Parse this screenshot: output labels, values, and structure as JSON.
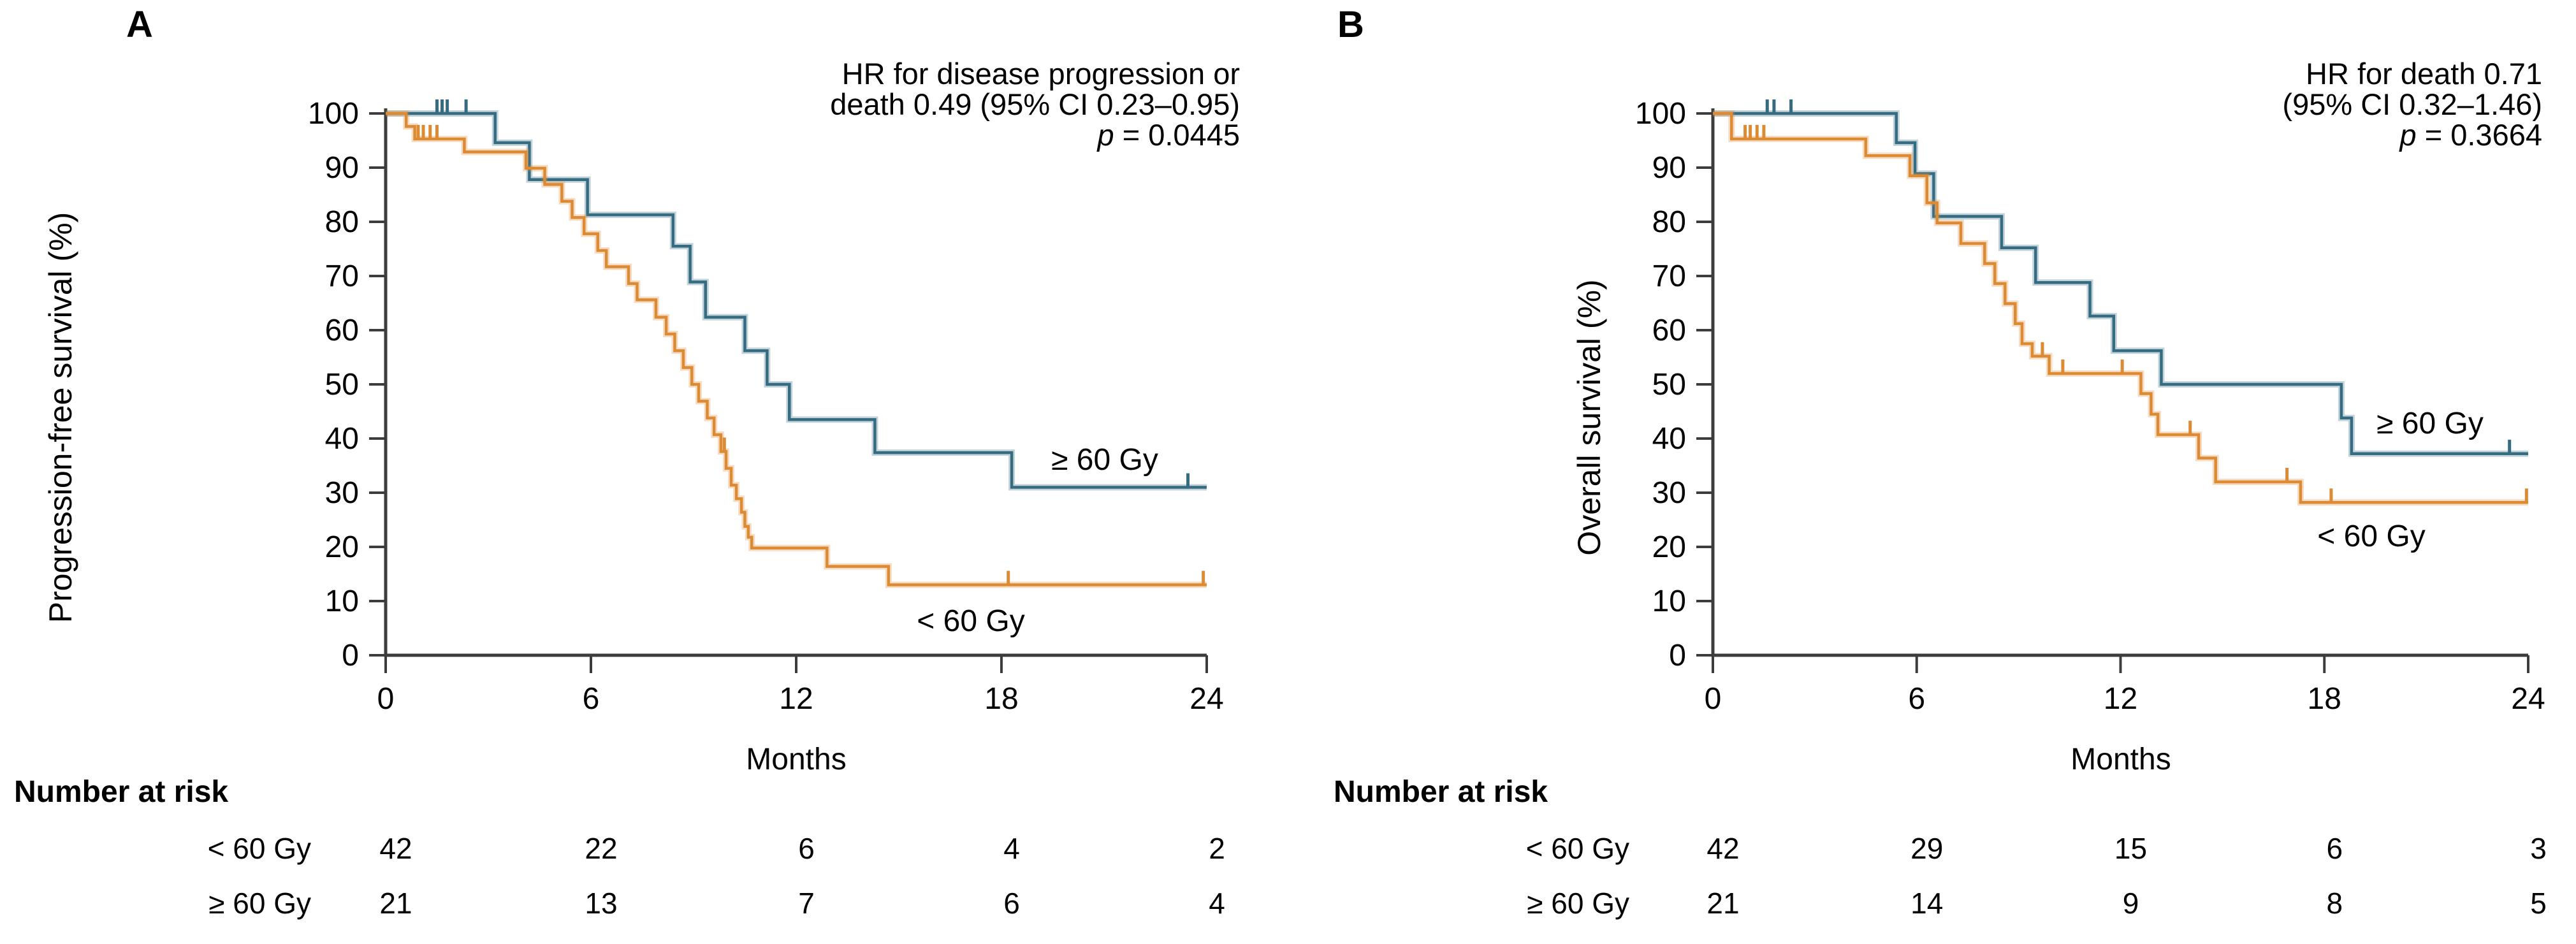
{
  "figure": {
    "colors": {
      "lt60": "#DD8A35",
      "ge60": "#356C82",
      "axis": "#3C3C3C",
      "text": "#000000"
    },
    "panels": [
      {
        "letter": "A",
        "ylabel": "Progression-free survival (%)",
        "xlabel": "Months",
        "annotation": {
          "line1": "HR for disease progression or",
          "line2": "death 0.49 (95% CI 0.23–0.95)",
          "p_symbol": "p",
          "p_value": " = 0.0445"
        },
        "curve_labels": {
          "ge60": "≥ 60 Gy",
          "lt60": "< 60 Gy"
        },
        "risk_table": {
          "title": "Number at risk",
          "rows": [
            {
              "label": "< 60 Gy",
              "counts": [
                "42",
                "22",
                "6",
                "4",
                "2"
              ]
            },
            {
              "label": "≥ 60 Gy",
              "counts": [
                "21",
                "13",
                "7",
                "6",
                "4"
              ]
            }
          ]
        }
      },
      {
        "letter": "B",
        "ylabel": "Overall survival (%)",
        "xlabel": "Months",
        "annotation": {
          "line1": "HR for death 0.71",
          "line2": "(95% CI 0.32–1.46)",
          "p_symbol": "p",
          "p_value": " = 0.3664"
        },
        "curve_labels": {
          "ge60": "≥ 60 Gy",
          "lt60": "< 60 Gy"
        },
        "risk_table": {
          "title": "Number at risk",
          "rows": [
            {
              "label": "< 60 Gy",
              "counts": [
                "42",
                "29",
                "15",
                "6",
                "3"
              ]
            },
            {
              "label": "≥ 60 Gy",
              "counts": [
                "21",
                "14",
                "9",
                "8",
                "5"
              ]
            }
          ]
        }
      }
    ]
  },
  "chart_data": [
    {
      "type": "line",
      "subtype": "kaplan-meier-step",
      "title": "A",
      "ylabel": "Progression-free survival (%)",
      "xlabel": "Months",
      "xlim": [
        0,
        24
      ],
      "ylim": [
        0,
        100
      ],
      "x_ticks": [
        0,
        6,
        12,
        18,
        24
      ],
      "y_ticks": [
        0,
        10,
        20,
        30,
        40,
        50,
        60,
        70,
        80,
        90,
        100
      ],
      "grid": false,
      "annotation": "HR for disease progression or death 0.49 (95% CI 0.23–0.95) p = 0.0445",
      "series": [
        {
          "name": "≥ 60 Gy",
          "color": "#356C82",
          "steps": [
            [
              0,
              100
            ],
            [
              3.2,
              94.6
            ],
            [
              4.2,
              87.8
            ],
            [
              5.9,
              81.3
            ],
            [
              8.4,
              75.5
            ],
            [
              8.9,
              68.9
            ],
            [
              9.35,
              62.4
            ],
            [
              10.5,
              56.2
            ],
            [
              11.15,
              50
            ],
            [
              11.8,
              43.5
            ],
            [
              14.3,
              37.4
            ],
            [
              18.3,
              31
            ]
          ],
          "end_month": 24,
          "censors": [
            [
              1.5,
              100
            ],
            [
              1.65,
              100
            ],
            [
              1.8,
              100
            ],
            [
              2.35,
              100
            ],
            [
              23.45,
              31
            ]
          ]
        },
        {
          "name": "< 60 Gy",
          "color": "#DD8A35",
          "steps": [
            [
              0,
              100
            ],
            [
              0.6,
              97.6
            ],
            [
              0.85,
              95.3
            ],
            [
              2.3,
              92.9
            ],
            [
              4.1,
              89.9
            ],
            [
              4.65,
              86.9
            ],
            [
              5.15,
              83.8
            ],
            [
              5.45,
              80.8
            ],
            [
              5.8,
              77.8
            ],
            [
              6.2,
              74.7
            ],
            [
              6.45,
              71.7
            ],
            [
              7.1,
              68.6
            ],
            [
              7.35,
              65.6
            ],
            [
              7.9,
              62.4
            ],
            [
              8.2,
              59.3
            ],
            [
              8.45,
              56.2
            ],
            [
              8.7,
              53.1
            ],
            [
              8.95,
              50
            ],
            [
              9.15,
              46.9
            ],
            [
              9.4,
              43.8
            ],
            [
              9.6,
              40.7
            ],
            [
              9.8,
              37.6
            ],
            [
              9.95,
              34.5
            ],
            [
              10.1,
              31.4
            ],
            [
              10.25,
              28.9
            ],
            [
              10.4,
              26.4
            ],
            [
              10.5,
              23.8
            ],
            [
              10.6,
              21.8
            ],
            [
              10.7,
              19.8
            ],
            [
              12.9,
              16.4
            ],
            [
              14.7,
              13
            ]
          ],
          "end_month": 24,
          "censors": [
            [
              0.95,
              95.3
            ],
            [
              1.1,
              95.3
            ],
            [
              1.3,
              95.3
            ],
            [
              1.5,
              95.3
            ],
            [
              9.9,
              37.6
            ],
            [
              18.2,
              13
            ],
            [
              23.9,
              13
            ]
          ]
        }
      ]
    },
    {
      "type": "line",
      "subtype": "kaplan-meier-step",
      "title": "B",
      "ylabel": "Overall survival (%)",
      "xlabel": "Months",
      "xlim": [
        0,
        24
      ],
      "ylim": [
        0,
        100
      ],
      "x_ticks": [
        0,
        6,
        12,
        18,
        24
      ],
      "y_ticks": [
        0,
        10,
        20,
        30,
        40,
        50,
        60,
        70,
        80,
        90,
        100
      ],
      "grid": false,
      "annotation": "HR for death 0.71 (95% CI 0.32–1.46) p = 0.3664",
      "series": [
        {
          "name": "≥ 60 Gy",
          "color": "#356C82",
          "steps": [
            [
              0,
              100
            ],
            [
              5.4,
              94.6
            ],
            [
              5.95,
              88.9
            ],
            [
              6.5,
              81
            ],
            [
              8.5,
              75.2
            ],
            [
              9.5,
              68.8
            ],
            [
              11.1,
              62.6
            ],
            [
              11.8,
              56.2
            ],
            [
              13.2,
              50
            ],
            [
              18.5,
              43.8
            ],
            [
              18.8,
              37.2
            ]
          ],
          "end_month": 24,
          "censors": [
            [
              1.6,
              100
            ],
            [
              1.8,
              100
            ],
            [
              2.3,
              100
            ],
            [
              23.45,
              37.2
            ]
          ]
        },
        {
          "name": "< 60 Gy",
          "color": "#DD8A35",
          "steps": [
            [
              0,
              100
            ],
            [
              0.55,
              95.3
            ],
            [
              4.5,
              92.2
            ],
            [
              5.8,
              88.5
            ],
            [
              6.3,
              83.5
            ],
            [
              6.6,
              79.8
            ],
            [
              7.3,
              76
            ],
            [
              8,
              72.3
            ],
            [
              8.3,
              68.6
            ],
            [
              8.6,
              64.9
            ],
            [
              8.9,
              61.2
            ],
            [
              9.1,
              57.5
            ],
            [
              9.4,
              55.2
            ],
            [
              9.9,
              52
            ],
            [
              12.6,
              48.3
            ],
            [
              12.9,
              44.5
            ],
            [
              13.1,
              40.7
            ],
            [
              14.3,
              36.4
            ],
            [
              14.8,
              32
            ],
            [
              17.3,
              28.2
            ]
          ],
          "end_month": 24,
          "censors": [
            [
              0.95,
              95.3
            ],
            [
              1.1,
              95.3
            ],
            [
              1.3,
              95.3
            ],
            [
              1.5,
              95.3
            ],
            [
              9.7,
              55.2
            ],
            [
              10.3,
              52
            ],
            [
              12.05,
              52
            ],
            [
              14.05,
              40.7
            ],
            [
              16.9,
              32
            ],
            [
              18.2,
              28.2
            ],
            [
              23.95,
              28.2
            ]
          ]
        }
      ]
    }
  ]
}
